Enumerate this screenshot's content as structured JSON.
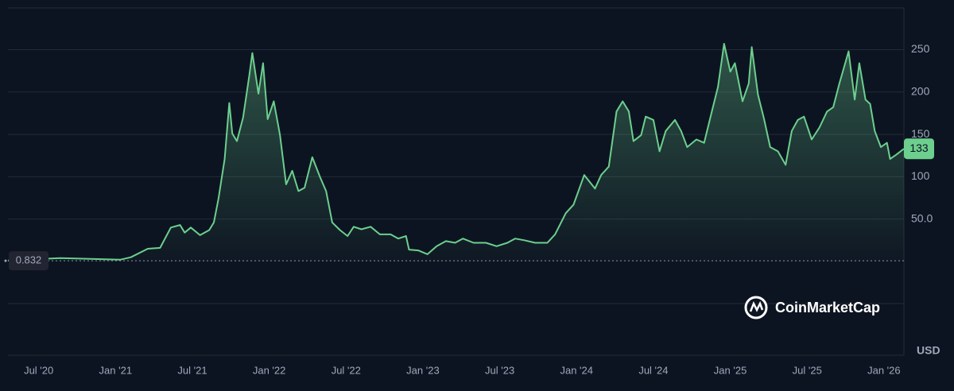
{
  "chart_data": {
    "type": "area",
    "x": [
      2020.3,
      2020.64,
      2021.03,
      2021.1,
      2021.21,
      2021.29,
      2021.36,
      2021.42,
      2021.45,
      2021.49,
      2021.55,
      2021.61,
      2021.64,
      2021.67,
      2021.71,
      2021.74,
      2021.76,
      2021.79,
      2021.83,
      2021.87,
      2021.89,
      2021.93,
      2021.96,
      2021.99,
      2022.03,
      2022.07,
      2022.11,
      2022.15,
      2022.19,
      2022.23,
      2022.28,
      2022.33,
      2022.37,
      2022.41,
      2022.46,
      2022.51,
      2022.55,
      2022.6,
      2022.66,
      2022.72,
      2022.79,
      2022.84,
      2022.89,
      2022.91,
      2022.97,
      2023.03,
      2023.09,
      2023.15,
      2023.21,
      2023.26,
      2023.33,
      2023.41,
      2023.48,
      2023.55,
      2023.6,
      2023.66,
      2023.73,
      2023.81,
      2023.86,
      2023.93,
      2023.98,
      2024.05,
      2024.12,
      2024.16,
      2024.21,
      2024.26,
      2024.3,
      2024.34,
      2024.37,
      2024.42,
      2024.45,
      2024.5,
      2024.54,
      2024.58,
      2024.64,
      2024.68,
      2024.72,
      2024.78,
      2024.83,
      2024.88,
      2024.92,
      2024.96,
      2025.0,
      2025.03,
      2025.08,
      2025.12,
      2025.14,
      2025.18,
      2025.22,
      2025.26,
      2025.31,
      2025.36,
      2025.4,
      2025.44,
      2025.48,
      2025.53,
      2025.58,
      2025.63,
      2025.67,
      2025.71,
      2025.77,
      2025.81,
      2025.84,
      2025.88,
      2025.91,
      2025.94,
      2025.98,
      2026.02,
      2026.04,
      2026.08,
      2026.13
    ],
    "values": [
      1,
      4,
      2,
      5,
      15,
      16,
      40,
      43,
      34,
      40,
      31,
      37,
      46,
      74,
      121,
      187,
      151,
      142,
      170,
      219,
      246,
      198,
      234,
      168,
      189,
      149,
      91,
      107,
      83,
      87,
      123,
      100,
      83,
      46,
      37,
      30,
      41,
      38,
      41,
      32,
      32,
      27,
      30,
      14,
      13,
      8.5,
      18,
      24,
      22,
      27,
      22,
      22,
      18,
      22,
      27,
      25,
      22,
      22,
      32,
      57,
      67,
      102,
      86,
      102,
      112,
      177,
      189,
      177,
      142,
      149,
      171,
      167,
      130,
      154,
      167,
      154,
      135,
      144,
      140,
      177,
      206,
      257,
      224,
      234,
      189,
      210,
      253,
      197,
      168,
      135,
      130,
      114,
      154,
      167,
      171,
      144,
      158,
      177,
      182,
      210,
      248,
      191,
      234,
      191,
      186,
      154,
      135,
      140,
      121,
      126,
      133
    ],
    "color": "#6ccf8e",
    "xlim": [
      2020.3,
      2026.13
    ],
    "ylim": [
      -110.7,
      299.2
    ],
    "xticks": [
      {
        "value": 2020.5,
        "label": "Jul '20"
      },
      {
        "value": 2021.0,
        "label": "Jan '21"
      },
      {
        "value": 2021.5,
        "label": "Jul '21"
      },
      {
        "value": 2022.0,
        "label": "Jan '22"
      },
      {
        "value": 2022.5,
        "label": "Jul '22"
      },
      {
        "value": 2023.0,
        "label": "Jan '23"
      },
      {
        "value": 2023.5,
        "label": "Jul '23"
      },
      {
        "value": 2024.0,
        "label": "Jan '24"
      },
      {
        "value": 2024.5,
        "label": "Jul '24"
      },
      {
        "value": 2025.0,
        "label": "Jan '25"
      },
      {
        "value": 2025.5,
        "label": "Jul '25"
      },
      {
        "value": 2026.0,
        "label": "Jan '26"
      }
    ],
    "yticks": [
      {
        "value": 50,
        "label": "50.0"
      },
      100,
      150,
      200,
      250
    ],
    "grid": true,
    "start_value": 0.832,
    "current_value": 133,
    "unit": "USD",
    "watermark": "CoinMarketCap"
  }
}
